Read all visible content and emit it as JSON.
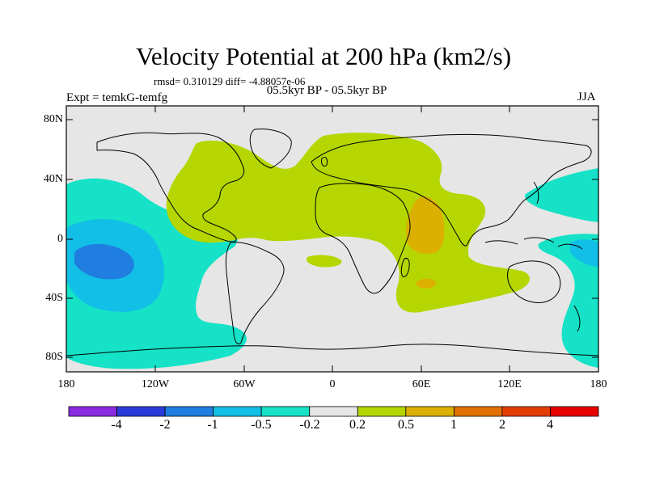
{
  "title": "Velocity Potential at 200 hPa (km2/s)",
  "stats": "rmsd= 0.310129 diff= -4.88057e-06",
  "experiment": "Expt = temkG-temfg",
  "period": "05.5kyr BP - 05.5kyr BP",
  "season": "JJA",
  "lat_ticks": [
    "80N",
    "40N",
    "0",
    "40S",
    "80S"
  ],
  "lon_ticks": [
    "180",
    "120W",
    "60W",
    "0",
    "60E",
    "120E",
    "180"
  ],
  "colorbar": {
    "labels": [
      "-4",
      "-2",
      "-1",
      "-0.5",
      "-0.2",
      "0.2",
      "0.5",
      "1",
      "2",
      "4"
    ],
    "colors": [
      "#8a2be2",
      "#2b3bd9",
      "#1f7ee0",
      "#12bfe6",
      "#15e2c6",
      "#e6e6e6",
      "#b5d600",
      "#dbb000",
      "#e07000",
      "#e43d00",
      "#e60000"
    ]
  },
  "fill_colors": {
    "neutral": "#e6e6e6",
    "light_neg": "#15e2c6",
    "mid_neg": "#12bfe6",
    "strong_neg": "#1f7ee0",
    "light_pos": "#b5d600",
    "mid_pos": "#dbb000"
  }
}
